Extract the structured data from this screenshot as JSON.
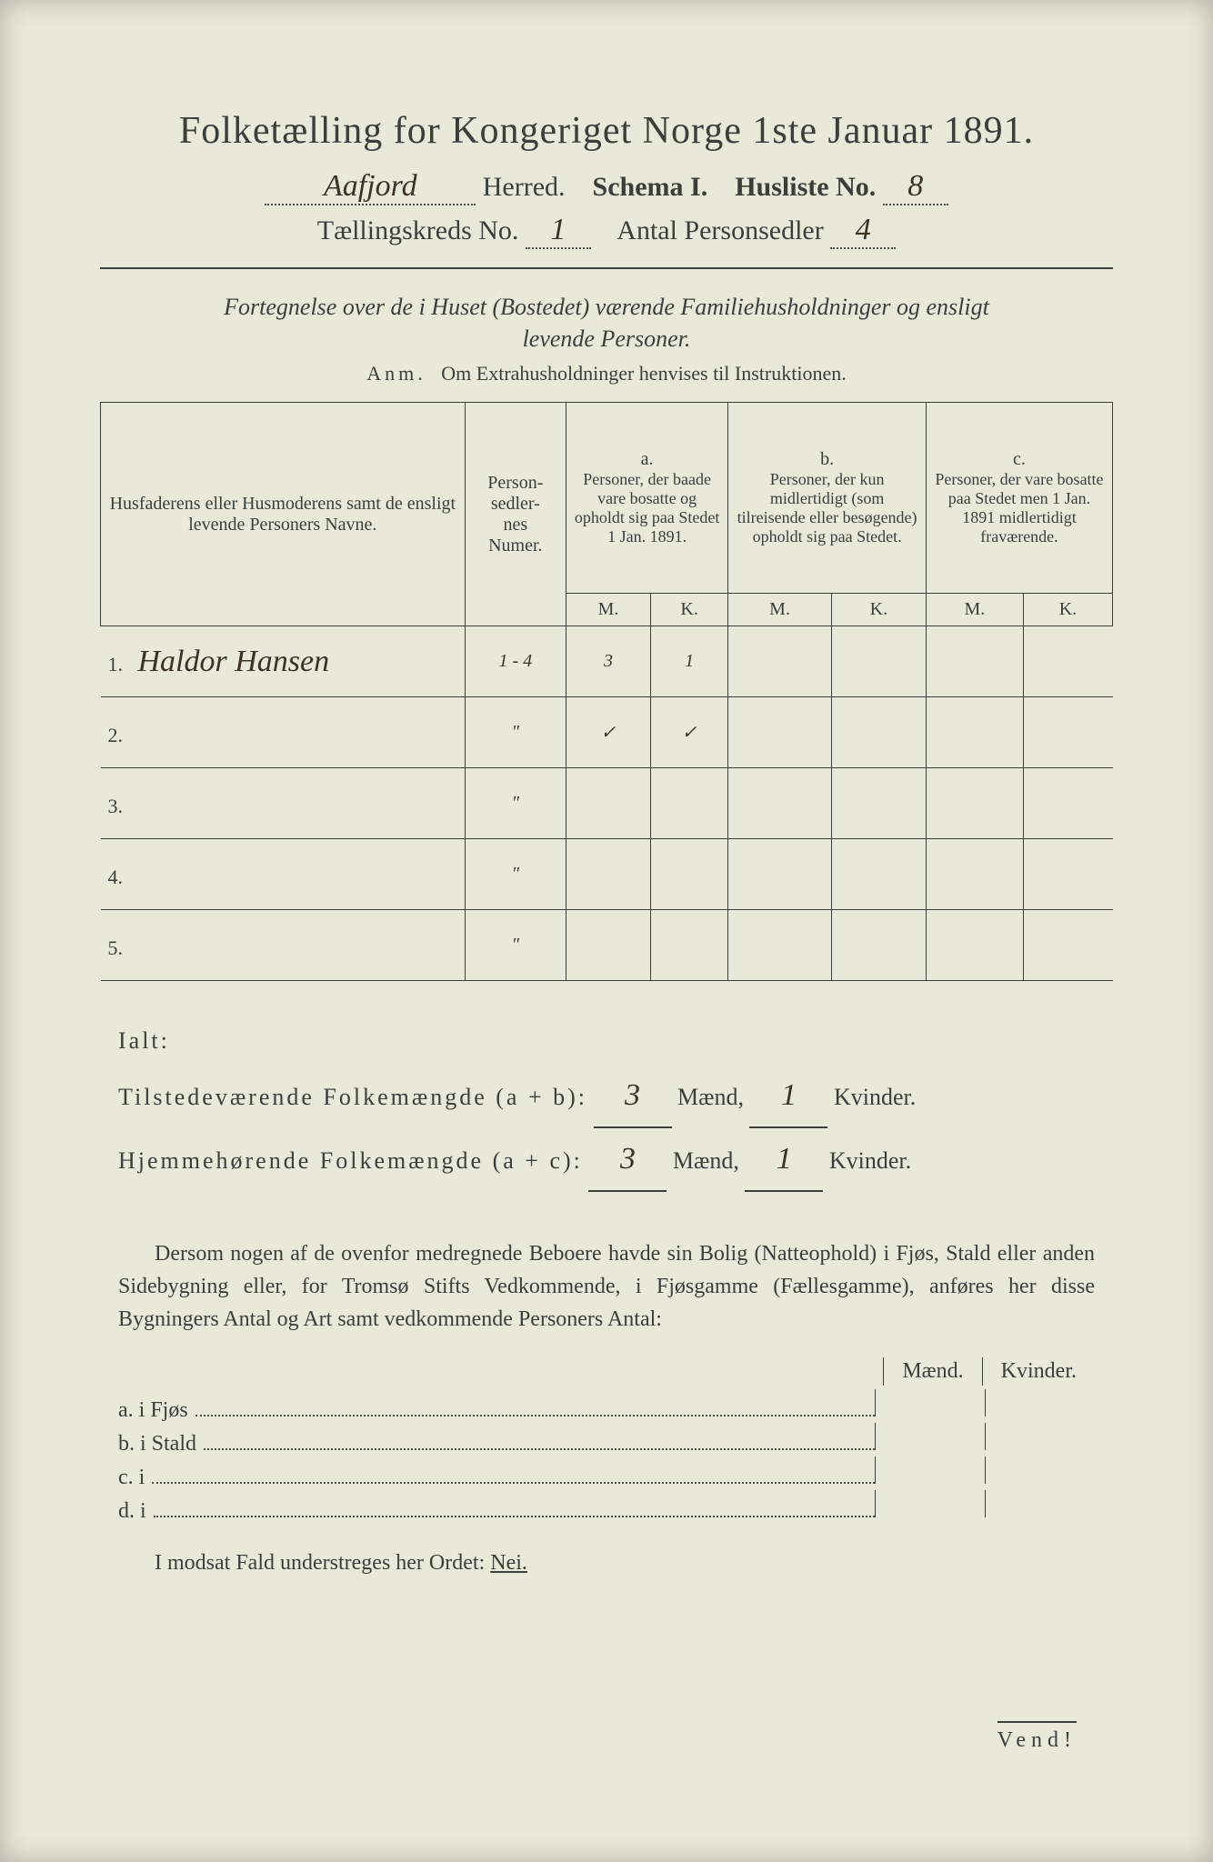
{
  "header": {
    "title": "Folketælling for Kongeriget Norge 1ste Januar 1891.",
    "herred_value": "Aafjord",
    "herred_label": "Herred.",
    "schema_label": "Schema I.",
    "husliste_label": "Husliste No.",
    "husliste_value": "8",
    "kreds_label": "Tællingskreds No.",
    "kreds_value": "1",
    "antal_label": "Antal Personsedler",
    "antal_value": "4"
  },
  "subtitle": {
    "line1": "Fortegnelse over de i Huset (Bostedet) værende Familiehusholdninger og ensligt",
    "line2": "levende Personer.",
    "anm_label": "Anm.",
    "anm_text": "Om Extrahusholdninger henvises til Instruktionen."
  },
  "table": {
    "col_name": "Husfaderens eller Husmoderens samt de ensligt levende Personers Navne.",
    "col_num": "Person-\nsedler-\nnes\nNumer.",
    "col_a_head": "a.",
    "col_a": "Personer, der baade vare bosatte og opholdt sig paa Stedet 1 Jan. 1891.",
    "col_b_head": "b.",
    "col_b": "Personer, der kun midlertidigt (som tilreisende eller besøgende) opholdt sig paa Stedet.",
    "col_c_head": "c.",
    "col_c": "Personer, der vare bosatte paa Stedet men 1 Jan. 1891 midlertidigt fraværende.",
    "m": "M.",
    "k": "K.",
    "rows": [
      {
        "n": "1.",
        "name": "Haldor Hansen",
        "num": "1 - 4",
        "a_m": "3",
        "a_k": "1",
        "b_m": "",
        "b_k": "",
        "c_m": "",
        "c_k": ""
      },
      {
        "n": "2.",
        "name": "",
        "num": "\"",
        "a_m": "✓",
        "a_k": "✓",
        "b_m": "",
        "b_k": "",
        "c_m": "",
        "c_k": ""
      },
      {
        "n": "3.",
        "name": "",
        "num": "\"",
        "a_m": "",
        "a_k": "",
        "b_m": "",
        "b_k": "",
        "c_m": "",
        "c_k": ""
      },
      {
        "n": "4.",
        "name": "",
        "num": "\"",
        "a_m": "",
        "a_k": "",
        "b_m": "",
        "b_k": "",
        "c_m": "",
        "c_k": ""
      },
      {
        "n": "5.",
        "name": "",
        "num": "\"",
        "a_m": "",
        "a_k": "",
        "b_m": "",
        "b_k": "",
        "c_m": "",
        "c_k": ""
      }
    ]
  },
  "totals": {
    "ialt": "Ialt:",
    "line1_label": "Tilstedeværende Folkemængde (a + b):",
    "line2_label": "Hjemmehørende Folkemængde (a + c):",
    "maend": "Mænd,",
    "kvinder": "Kvinder.",
    "v1_m": "3",
    "v1_k": "1",
    "v2_m": "3",
    "v2_k": "1"
  },
  "paragraph": {
    "text": "Dersom nogen af de ovenfor medregnede Beboere havde sin Bolig (Natteophold) i Fjøs, Stald eller anden Sidebygning eller, for Tromsø Stifts Vedkommende, i Fjøsgamme (Fællesgamme), anføres her disse Bygningers Antal og Art samt vedkommende Personers Antal:"
  },
  "special": {
    "maend": "Mænd.",
    "kvinder": "Kvinder.",
    "rows": [
      {
        "lead": "a.  i      Fjøs"
      },
      {
        "lead": "b.  i      Stald"
      },
      {
        "lead": "c.  i"
      },
      {
        "lead": "d.  i"
      }
    ]
  },
  "footer": {
    "text_pre": "I modsat Fald understreges her Ordet: ",
    "nei": "Nei.",
    "vend": "Vend!"
  },
  "style": {
    "page_bg": "#e9e9da",
    "ink": "#3a3f3a",
    "hand_ink": "#3a3420"
  }
}
